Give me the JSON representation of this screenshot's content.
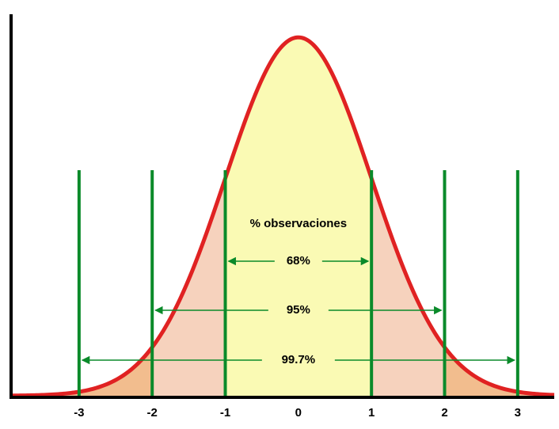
{
  "chart_data": {
    "type": "normal",
    "xlim": [
      -3.93,
      3.5
    ],
    "ylim": [
      0,
      0.4
    ],
    "xticks": [
      -3,
      -2,
      -1,
      0,
      1,
      2,
      3
    ],
    "annotation": "% observaciones",
    "ranges": [
      {
        "from": -1,
        "to": 1,
        "value": 68,
        "label": "68%"
      },
      {
        "from": -2,
        "to": 2,
        "value": 95,
        "label": "95%"
      },
      {
        "from": -3,
        "to": 3,
        "value": 99.7,
        "label": "99.7%"
      }
    ],
    "curve_color": "#e02222",
    "line_color": "#0a8a2a"
  }
}
